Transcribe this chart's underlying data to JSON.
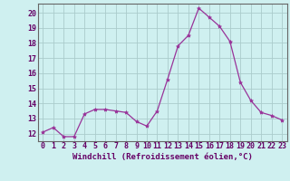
{
  "x": [
    0,
    1,
    2,
    3,
    4,
    5,
    6,
    7,
    8,
    9,
    10,
    11,
    12,
    13,
    14,
    15,
    16,
    17,
    18,
    19,
    20,
    21,
    22,
    23
  ],
  "y": [
    12.1,
    12.4,
    11.8,
    11.8,
    13.3,
    13.6,
    13.6,
    13.5,
    13.4,
    12.8,
    12.5,
    13.5,
    15.6,
    17.8,
    18.5,
    20.3,
    19.7,
    19.1,
    18.1,
    15.4,
    14.2,
    13.4,
    13.2,
    12.9
  ],
  "line_color": "#993399",
  "marker": "*",
  "marker_size": 3,
  "bg_color": "#cff0f0",
  "grid_color": "#aacccc",
  "xlabel": "Windchill (Refroidissement éolien,°C)",
  "xlabel_fontsize": 6.5,
  "tick_fontsize": 6.0,
  "xlim": [
    -0.5,
    23.5
  ],
  "ylim": [
    11.5,
    20.6
  ],
  "yticks": [
    12,
    13,
    14,
    15,
    16,
    17,
    18,
    19,
    20
  ],
  "xticks": [
    0,
    1,
    2,
    3,
    4,
    5,
    6,
    7,
    8,
    9,
    10,
    11,
    12,
    13,
    14,
    15,
    16,
    17,
    18,
    19,
    20,
    21,
    22,
    23
  ],
  "spine_color": "#666666",
  "tick_color": "#660066",
  "label_color": "#660066"
}
